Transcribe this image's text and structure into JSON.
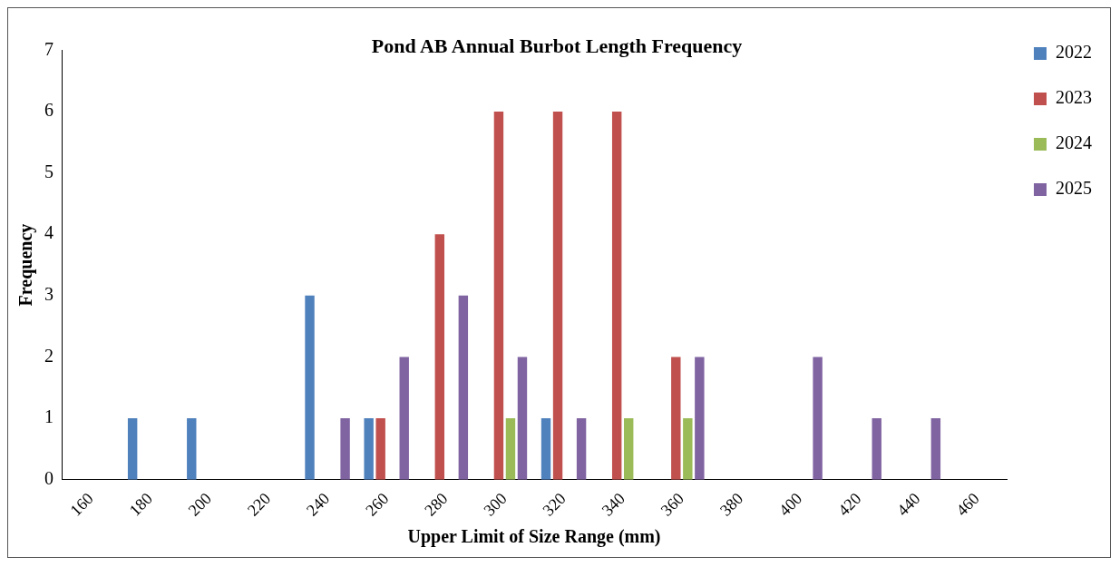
{
  "chart_data": {
    "type": "bar",
    "title": "Pond AB Annual Burbot Length Frequency",
    "xlabel": "Upper Limit of Size Range (mm)",
    "ylabel": "Frequency",
    "categories": [
      "160",
      "180",
      "200",
      "220",
      "240",
      "260",
      "280",
      "300",
      "320",
      "340",
      "360",
      "380",
      "400",
      "420",
      "440",
      "460"
    ],
    "series": [
      {
        "name": "2022",
        "color": "#4f81bd",
        "values": [
          0,
          1,
          1,
          0,
          3,
          1,
          0,
          0,
          1,
          0,
          0,
          0,
          0,
          0,
          0,
          0
        ]
      },
      {
        "name": "2023",
        "color": "#c0504d",
        "values": [
          0,
          0,
          0,
          0,
          0,
          1,
          4,
          6,
          6,
          6,
          2,
          0,
          0,
          0,
          0,
          0
        ]
      },
      {
        "name": "2024",
        "color": "#9bbb59",
        "values": [
          0,
          0,
          0,
          0,
          0,
          0,
          0,
          1,
          0,
          1,
          1,
          0,
          0,
          0,
          0,
          0
        ]
      },
      {
        "name": "2025",
        "color": "#8064a2",
        "values": [
          0,
          0,
          0,
          0,
          1,
          2,
          3,
          2,
          1,
          0,
          2,
          0,
          2,
          1,
          1,
          0
        ]
      }
    ],
    "ylim": [
      0,
      7
    ],
    "yticks": [
      0,
      1,
      2,
      3,
      4,
      5,
      6,
      7
    ],
    "grid": false,
    "legend": "top right"
  }
}
